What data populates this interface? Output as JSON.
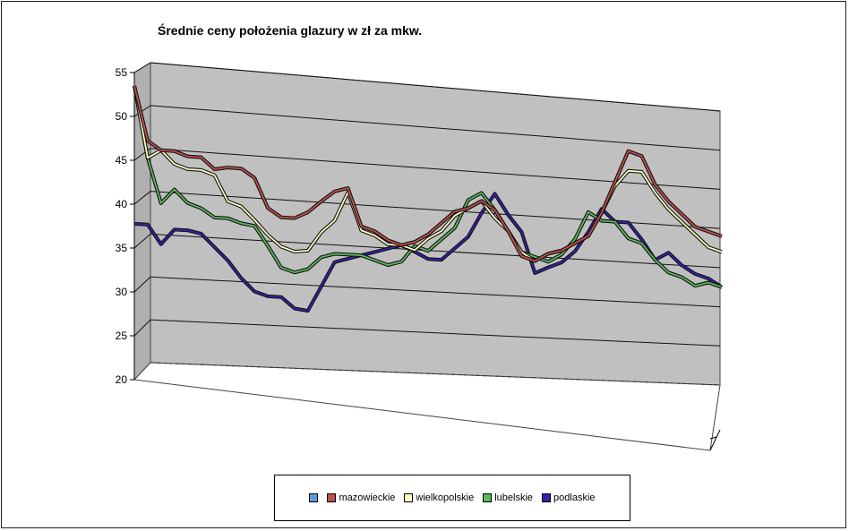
{
  "chart_data": {
    "type": "line",
    "title": "Średnie ceny położenia glazury w zł za mkw.",
    "xlabel": "",
    "ylabel": "",
    "ylim": [
      20,
      55
    ],
    "yticks": [
      "20",
      "25",
      "30",
      "35",
      "40",
      "45",
      "50",
      "55"
    ],
    "grid": true,
    "legend_position": "bottom",
    "legend": [
      {
        "label": "",
        "color": "#5b9bd5"
      },
      {
        "label": "mazowieckie",
        "color": "#c0504d"
      },
      {
        "label": "wielkopolskie",
        "color": "#ffffc0"
      },
      {
        "label": "lubelskie",
        "color": "#5cb85c"
      },
      {
        "label": "podlaskie",
        "color": "#3322aa"
      }
    ],
    "series": [
      {
        "name": "mazowieckie",
        "color": "#c0504d",
        "values": [
          52.3,
          46,
          45,
          45,
          44.5,
          44.5,
          43.2,
          43.5,
          43.5,
          42.5,
          39,
          38,
          38,
          38.8,
          40.2,
          41.5,
          42,
          37.5,
          37,
          36,
          35.5,
          36,
          37,
          38.5,
          40,
          40.5,
          41.5,
          40.5,
          38,
          35,
          34.5,
          35.5,
          36,
          37,
          38,
          41,
          45,
          49,
          48.5,
          45,
          43,
          41.5,
          40,
          39.5,
          39
        ]
      },
      {
        "name": "wielkopolskie",
        "color": "#ffffc0",
        "values": [
          52.3,
          44,
          45,
          43.5,
          43,
          43,
          42.5,
          39.5,
          39,
          37.5,
          35.8,
          34.5,
          34,
          34.2,
          36.5,
          38,
          41.5,
          37,
          36.5,
          35.5,
          35.5,
          35,
          36.5,
          37.5,
          39.5,
          40.5,
          41.5,
          39.5,
          38,
          35.5,
          34.5,
          35.5,
          36,
          37,
          38,
          41,
          44.5,
          46.5,
          46.5,
          44,
          42,
          40.5,
          39,
          37.5,
          37
        ]
      },
      {
        "name": "lubelskie",
        "color": "#5cb85c",
        "values": [
          52.3,
          44,
          38.8,
          40.5,
          39,
          38.5,
          37.5,
          37.5,
          37,
          36.8,
          34.5,
          32,
          31.5,
          32,
          33.5,
          34,
          34,
          34,
          33.5,
          33,
          33.5,
          35.5,
          35,
          36.5,
          38,
          41.5,
          42.5,
          40.5,
          38,
          35.5,
          35,
          34.5,
          35.5,
          37.5,
          41,
          40,
          40,
          38,
          37.5,
          35.5,
          34,
          33.5,
          32.5,
          33,
          32.5
        ]
      },
      {
        "name": "podlaskie",
        "color": "#3322aa",
        "values": [
          36.2,
          36.2,
          34,
          35.8,
          35.8,
          35.5,
          34,
          32.5,
          30.5,
          29,
          28.5,
          28.5,
          27.2,
          27,
          30,
          33,
          33.5,
          34,
          34.5,
          35,
          35.5,
          34.8,
          34,
          34,
          35.5,
          37,
          40,
          42.5,
          40,
          38,
          33,
          33.8,
          34.5,
          36,
          38.5,
          41.5,
          40,
          40,
          38,
          35.5,
          36.5,
          35,
          34,
          33.5,
          32.5
        ]
      }
    ]
  }
}
